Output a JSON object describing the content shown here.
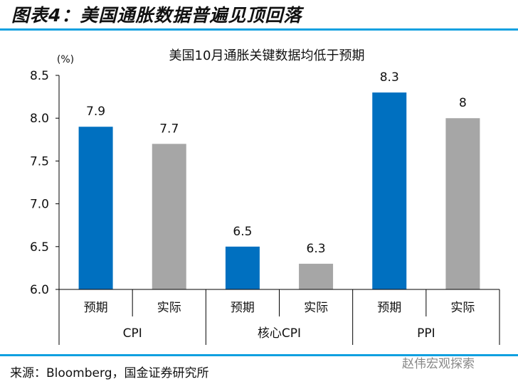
{
  "figure_title": "图表4：美国通胀数据普遍见顶回落",
  "source": "来源：Bloomberg，国金证券研究所",
  "watermark": "赵伟宏观探索",
  "colors": {
    "expected": "#0070c0",
    "actual": "#a6a6a6",
    "rule": "#10a0e0"
  },
  "chart_data": {
    "type": "bar",
    "title": "美国10月通胀关键数据均低于预期",
    "ylabel": "(%)",
    "ylim": [
      6.0,
      8.5
    ],
    "yticks": [
      "6.0",
      "6.5",
      "7.0",
      "7.5",
      "8.0",
      "8.5"
    ],
    "groups": [
      "CPI",
      "核心CPI",
      "PPI"
    ],
    "categories": [
      "预期",
      "实际",
      "预期",
      "实际",
      "预期",
      "实际"
    ],
    "values": [
      7.9,
      7.7,
      6.5,
      6.3,
      8.3,
      8
    ],
    "value_labels": [
      "7.9",
      "7.7",
      "6.5",
      "6.3",
      "8.3",
      "8"
    ],
    "series_type": [
      "expected",
      "actual",
      "expected",
      "actual",
      "expected",
      "actual"
    ]
  }
}
